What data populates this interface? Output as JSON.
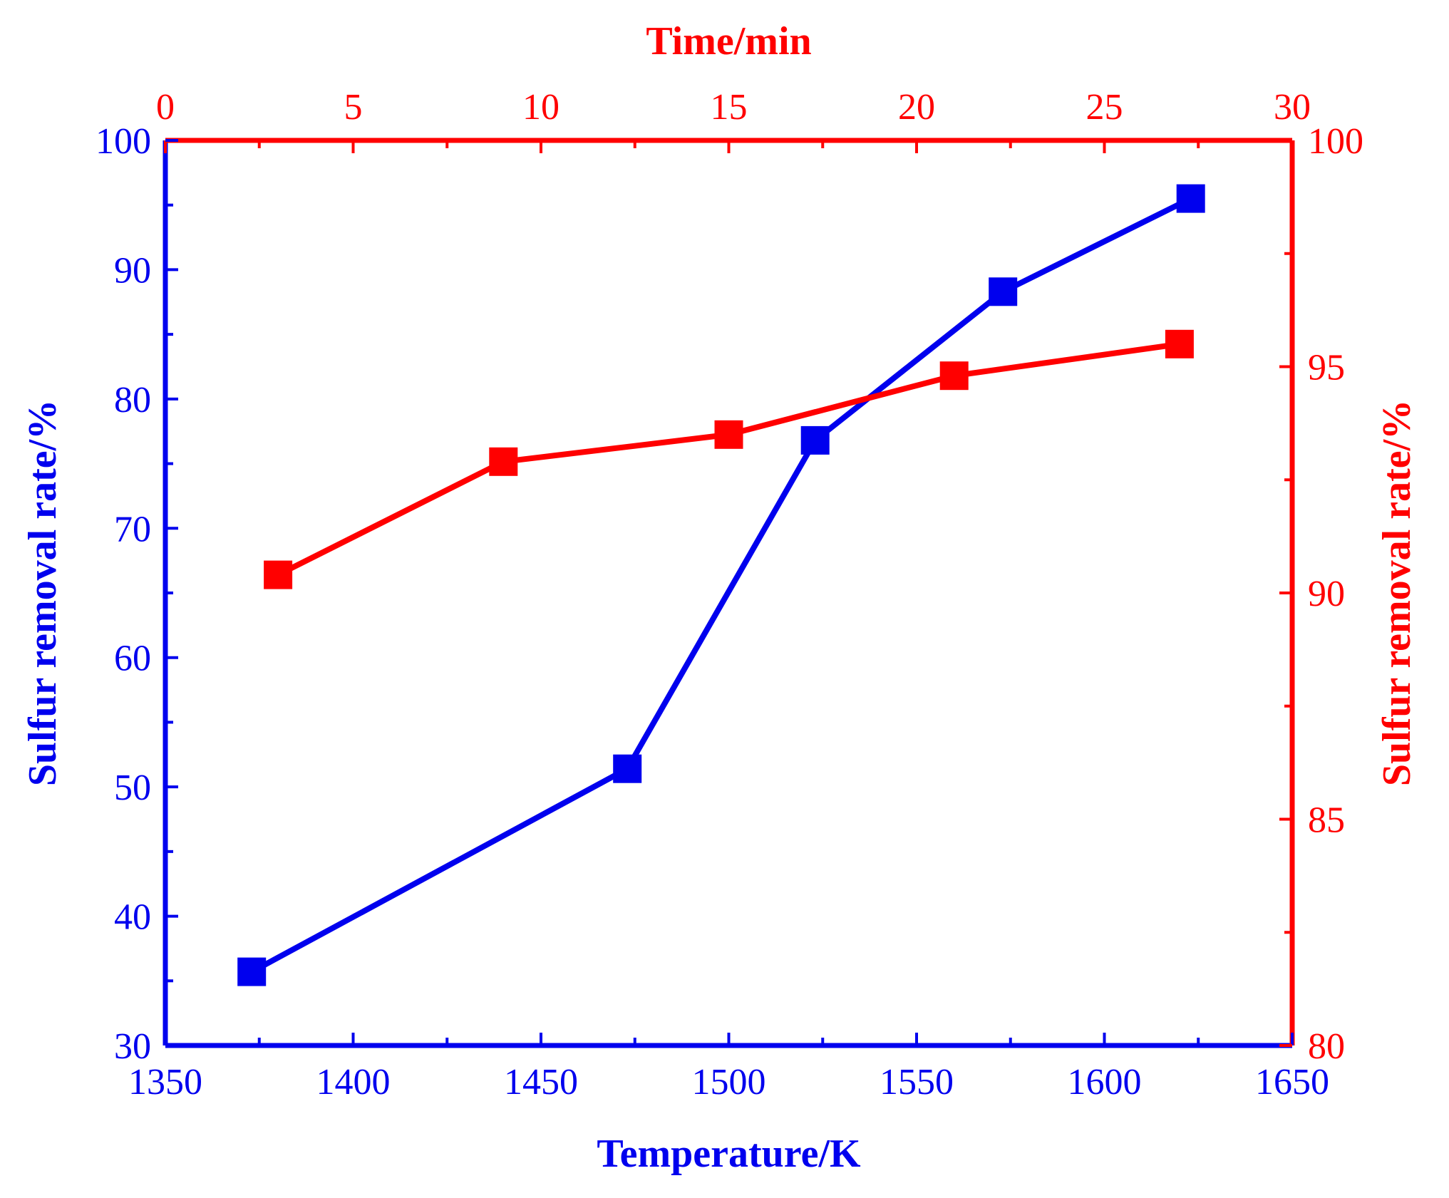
{
  "chart_data": {
    "type": "line",
    "colors": {
      "temperature": "#0000ee",
      "time": "#ff0000"
    },
    "x_bottom": {
      "label": "Temperature/K",
      "range": [
        1350,
        1650
      ],
      "ticks": [
        "1350",
        "1400",
        "1450",
        "1500",
        "1550",
        "1600",
        "1650"
      ]
    },
    "x_top": {
      "label": "Time/min",
      "range": [
        0,
        30
      ],
      "ticks": [
        "0",
        "5",
        "10",
        "15",
        "20",
        "25",
        "30"
      ]
    },
    "y_left": {
      "label": "Sulfur removal rate/%",
      "range": [
        30,
        100
      ],
      "ticks": [
        "30",
        "40",
        "50",
        "60",
        "70",
        "80",
        "90",
        "100"
      ]
    },
    "y_right": {
      "label": "Sulfur removal rate/%",
      "range": [
        80,
        100
      ],
      "ticks": [
        "80",
        "85",
        "90",
        "95",
        "100"
      ]
    },
    "series": [
      {
        "name": "Temperature",
        "axes": "bottom-left",
        "color": "#0000ee",
        "x": [
          1373,
          1473,
          1523,
          1573,
          1623
        ],
        "y": [
          35.7,
          51.4,
          76.8,
          88.3,
          95.5
        ]
      },
      {
        "name": "Time",
        "axes": "top-right",
        "color": "#ff0000",
        "x": [
          3,
          9,
          15,
          21,
          27
        ],
        "y": [
          90.4,
          92.9,
          93.5,
          94.8,
          95.5
        ]
      }
    ]
  }
}
